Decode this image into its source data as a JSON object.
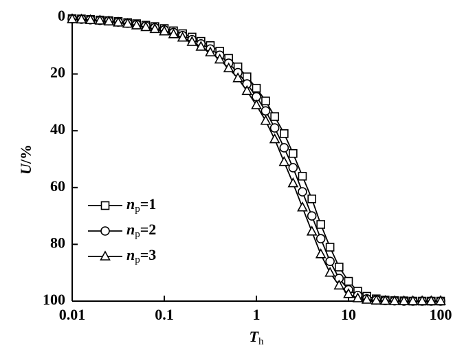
{
  "chart_data": {
    "type": "line",
    "x_label": "Th",
    "y_label": "U/%",
    "xscale": "log",
    "xlim": [
      0.01,
      100
    ],
    "xticks": [
      0.01,
      0.1,
      1,
      10,
      100
    ],
    "ylim": [
      100,
      0
    ],
    "yticks": [
      0,
      20,
      40,
      60,
      80,
      100
    ],
    "legend": "lower left",
    "x": [
      0.01,
      0.0126,
      0.0158,
      0.02,
      0.025,
      0.0316,
      0.04,
      0.05,
      0.063,
      0.079,
      0.1,
      0.126,
      0.158,
      0.2,
      0.25,
      0.316,
      0.4,
      0.5,
      0.63,
      0.79,
      1,
      1.26,
      1.58,
      2,
      2.5,
      3.16,
      4,
      5,
      6.3,
      7.9,
      10,
      12.6,
      15.8,
      20,
      25,
      31.6,
      40,
      50,
      63,
      79,
      100
    ],
    "series": [
      {
        "name": "np=1",
        "color": "#000000",
        "marker": "square",
        "values": [
          0.5,
          0.6,
          0.8,
          1.0,
          1.2,
          1.5,
          1.9,
          2.3,
          2.8,
          3.3,
          4.0,
          4.8,
          5.8,
          7,
          8.5,
          10,
          12,
          14.5,
          17.5,
          21,
          25,
          29.5,
          35,
          41,
          48,
          56,
          64,
          73,
          81,
          88,
          93,
          96.5,
          98.3,
          99.2,
          99.6,
          99.8,
          99.9,
          100,
          100,
          100,
          100
        ]
      },
      {
        "name": "np=2",
        "color": "#000000",
        "marker": "circle",
        "values": [
          0.6,
          0.7,
          0.9,
          1.1,
          1.3,
          1.7,
          2.1,
          2.6,
          3.1,
          3.7,
          4.5,
          5.4,
          6.5,
          7.9,
          9.4,
          11.2,
          13.4,
          16.2,
          19.5,
          23.5,
          28,
          33,
          39,
          46,
          53,
          61.5,
          70,
          78,
          86,
          92,
          96,
          98,
          99.2,
          99.6,
          99.8,
          99.9,
          100,
          100,
          100,
          100,
          100
        ]
      },
      {
        "name": "np=3",
        "color": "#000000",
        "marker": "triangle",
        "values": [
          0.7,
          0.8,
          1,
          1.2,
          1.5,
          1.9,
          2.3,
          2.9,
          3.5,
          4.2,
          5,
          6,
          7.2,
          8.7,
          10.4,
          12.4,
          14.9,
          18,
          21.5,
          26,
          31,
          36.5,
          43,
          51,
          58.5,
          67,
          75.5,
          83.5,
          90,
          94.5,
          97.5,
          99,
          99.5,
          99.8,
          99.9,
          100,
          100,
          100,
          100,
          100,
          100
        ]
      }
    ]
  }
}
